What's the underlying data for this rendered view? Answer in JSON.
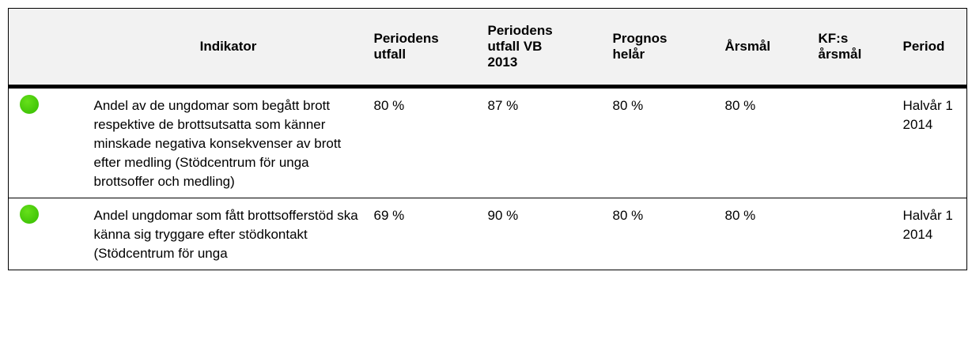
{
  "table": {
    "header": [
      "Indikator",
      "Periodens utfall",
      "Periodens utfall VB 2013",
      "Prognos helår",
      "Årsmål",
      "KF:s årsmål",
      "Period"
    ],
    "rows": [
      [
        "Andel av de ungdomar som begått brott respektive de brottsutsatta som känner minskade negativa konsekvenser av brott efter medling (Stödcentrum för unga brottsoffer och medling)",
        "80 %",
        "87 %",
        "80 %",
        "80 %",
        "",
        "Halvår 1 2014"
      ],
      [
        "Andel ungdomar som fått brottsofferstöd ska känna sig tryggare efter stödkontakt (Stödcentrum för unga",
        "69 %",
        "90 %",
        "80 %",
        "80 %",
        "",
        "Halvår 1 2014"
      ]
    ]
  }
}
